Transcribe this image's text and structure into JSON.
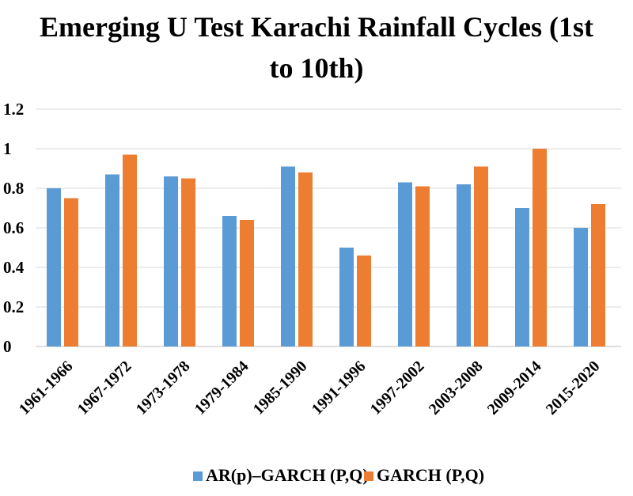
{
  "chart_data": {
    "type": "bar",
    "title_line1": "Emerging U Test Karachi Rainfall Cycles (1st",
    "title_line2": "to 10th)",
    "xlabel": "",
    "ylabel": "",
    "categories": [
      "1961-1966",
      "1967-1972",
      "1973-1978",
      "1979-1984",
      "1985-1990",
      "1991-1996",
      "1997-2002",
      "2003-2008",
      "2009-2014",
      "2015-2020"
    ],
    "series": [
      {
        "name": "AR(p)–GARCH (P,Q)",
        "color": "#5b9bd5",
        "values": [
          0.8,
          0.87,
          0.86,
          0.66,
          0.91,
          0.5,
          0.83,
          0.82,
          0.7,
          0.6
        ]
      },
      {
        "name": "GARCH (P,Q)",
        "color": "#ed7d31",
        "values": [
          0.75,
          0.97,
          0.85,
          0.64,
          0.88,
          0.46,
          0.81,
          0.91,
          1.0,
          0.72
        ]
      }
    ],
    "ylim": [
      0,
      1.2
    ],
    "yticks": [
      "0",
      "0.2",
      "0.4",
      "0.6",
      "0.8",
      "1",
      "1.2"
    ],
    "grid": true,
    "legend": "bottom"
  }
}
